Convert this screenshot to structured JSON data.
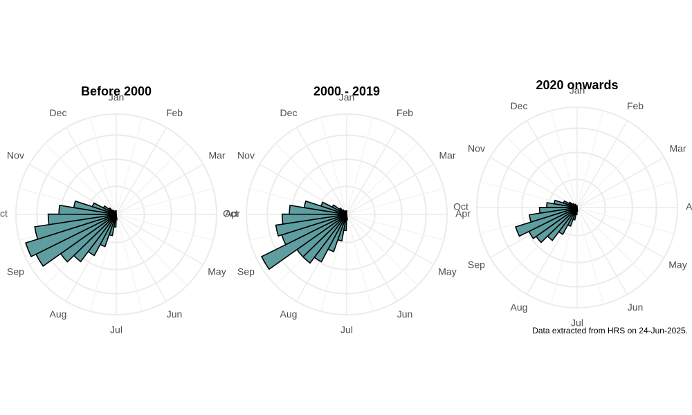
{
  "chart_data": [
    {
      "type": "bar",
      "coord": "polar",
      "title": "Before 2000",
      "theta_labels": [
        "Jan",
        "Feb",
        "Mar",
        "Apr",
        "May",
        "Jun",
        "Jul",
        "Aug",
        "Sep",
        "Oct",
        "Nov",
        "Dec"
      ],
      "bin_unit": "day of year",
      "bins": [
        175,
        184,
        193,
        202,
        211,
        220,
        229,
        238,
        247,
        256,
        265,
        274,
        283,
        292,
        301,
        310,
        319,
        328,
        337,
        346,
        355
      ],
      "values": [
        3,
        7,
        12,
        19,
        26,
        33,
        38,
        50,
        53,
        46,
        38,
        32,
        24,
        14,
        8,
        5,
        3,
        2,
        2,
        2,
        2
      ],
      "rmax": 56,
      "grid": true
    },
    {
      "type": "bar",
      "coord": "polar",
      "title": "2000 - 2019",
      "theta_labels": [
        "Jan",
        "Feb",
        "Mar",
        "Apr",
        "May",
        "Jun",
        "Jul",
        "Aug",
        "Sep",
        "Oct",
        "Nov",
        "Dec"
      ],
      "bin_unit": "day of year",
      "bins": [
        175,
        184,
        193,
        202,
        211,
        220,
        229,
        238,
        247,
        256,
        265,
        274,
        283,
        292,
        301,
        310,
        319,
        328,
        337,
        346,
        355
      ],
      "values": [
        3,
        9,
        15,
        22,
        30,
        34,
        34,
        53,
        38,
        40,
        36,
        32,
        24,
        15,
        9,
        5,
        3,
        2,
        2,
        2,
        2
      ],
      "rmax": 56,
      "grid": true
    },
    {
      "type": "bar",
      "coord": "polar",
      "title": "2020 onwards",
      "theta_labels": [
        "Jan",
        "Feb",
        "Mar",
        "Apr",
        "May",
        "Jun",
        "Jul",
        "Aug",
        "Sep",
        "Oct",
        "Nov",
        "Dec"
      ],
      "bin_unit": "day of year",
      "bins": [
        175,
        184,
        193,
        202,
        211,
        220,
        229,
        238,
        247,
        256,
        265,
        274,
        283,
        292,
        301,
        310,
        319,
        328,
        337,
        346,
        355
      ],
      "values": [
        2,
        4,
        7,
        11,
        17,
        23,
        28,
        30,
        36,
        27,
        21,
        17,
        13,
        8,
        5,
        3,
        2,
        2,
        1,
        1,
        1
      ],
      "rmax": 56,
      "grid": true
    }
  ],
  "caption": "Data extracted from HRS on 24-Jun-2025.",
  "colors": {
    "bar_fill": "#5f9ea0",
    "bar_outline": "#000000",
    "grid": "#ebebeb",
    "label": "#4d4d4d"
  }
}
